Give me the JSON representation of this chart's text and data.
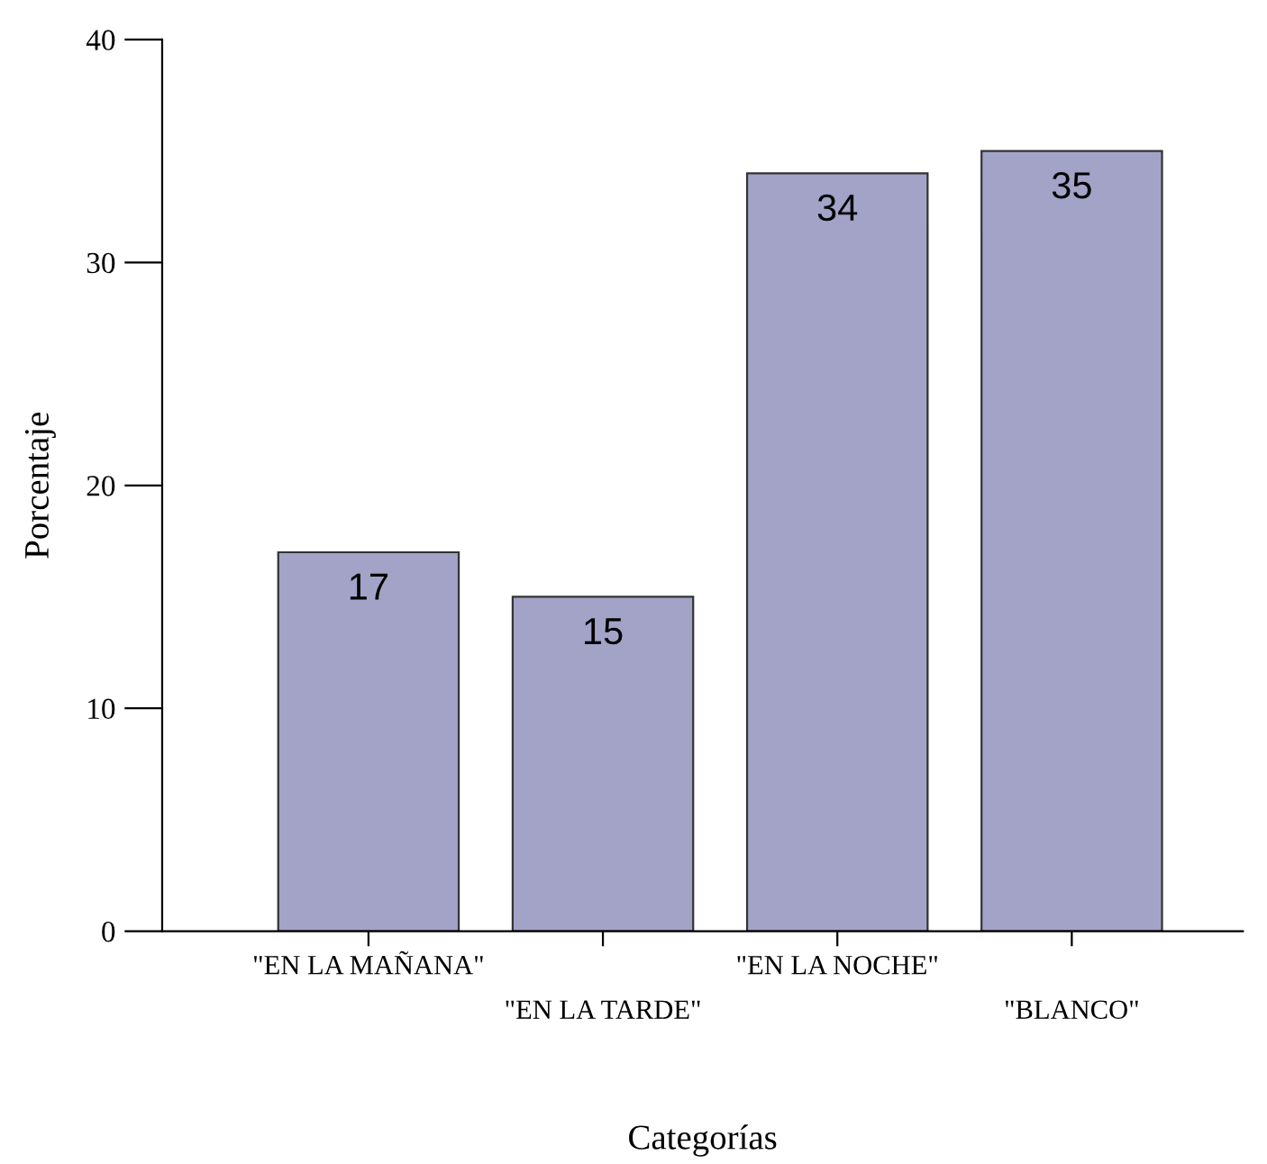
{
  "chart_data": {
    "type": "bar",
    "xlabel": "Categorías",
    "ylabel": "Porcentaje",
    "categories": [
      "\"EN LA MAÑANA\"",
      "\"EN LA TARDE\"",
      "\"EN LA NOCHE\"",
      "\"BLANCO\""
    ],
    "values": [
      17,
      15,
      34,
      35
    ],
    "color": "#a3a3c8",
    "ylim": [
      0,
      40
    ],
    "yticks": [
      0,
      10,
      20,
      30,
      40
    ],
    "grid": false,
    "data_labels": true
  }
}
